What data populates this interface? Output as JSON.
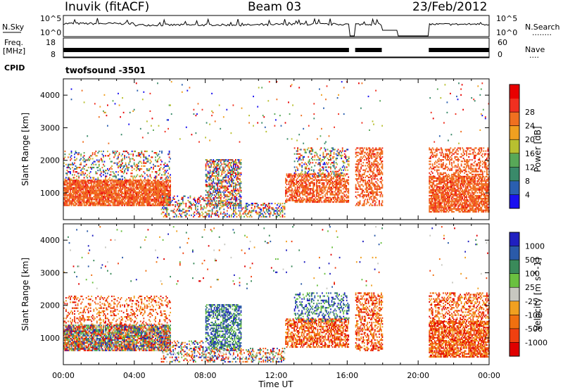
{
  "header": {
    "station": "Inuvik (fitACF)",
    "beam": "Beam 03",
    "date": "23/Feb/2012"
  },
  "side_labels": {
    "nsky": "N.Sky",
    "nsearch": "N.Search",
    "nsearch_dots": "........",
    "freq_line1": "Freq.",
    "freq_line2": "[MHz]",
    "nave": "Nave",
    "nave_dots": "....",
    "cpid": "CPID"
  },
  "strip_ticks": {
    "nsky_left": [
      "10^5",
      "10^0"
    ],
    "nsky_right": [
      "10^5",
      "10^0"
    ],
    "freq_left": [
      "18",
      "8"
    ],
    "nave_right": [
      "60",
      "0"
    ]
  },
  "cpid_text": "twofsound  -3501",
  "chart_data": [
    {
      "type": "heatmap",
      "title": "",
      "xlabel": "",
      "ylabel": "Slant Range [km]",
      "xlim": [
        0,
        24
      ],
      "ylim": [
        180,
        4500
      ],
      "x_ticks": [
        "00:00",
        "04:00",
        "08:00",
        "12:00",
        "16:00",
        "20:00",
        "00:00"
      ],
      "y_ticks": [
        1000,
        2000,
        3000,
        4000
      ],
      "colorbar": {
        "label": "Power [dB]",
        "ticks": [
          "4",
          "8",
          "12",
          "16",
          "20",
          "24",
          "28"
        ],
        "colors": [
          "#1a10f0",
          "#2a5fb0",
          "#3a8a6a",
          "#58a858",
          "#b8c030",
          "#f0a020",
          "#f07020",
          "#f03020",
          "#e80000"
        ]
      },
      "data_gaps_ut": [
        [
          16.1,
          16.45
        ],
        [
          17.95,
          20.6
        ]
      ],
      "grid": false
    },
    {
      "type": "heatmap",
      "title": "",
      "xlabel": "Time UT",
      "ylabel": "Slant Range [km]",
      "xlim": [
        0,
        24
      ],
      "ylim": [
        180,
        4500
      ],
      "x_ticks": [
        "00:00",
        "04:00",
        "08:00",
        "12:00",
        "16:00",
        "20:00",
        "00:00"
      ],
      "y_ticks": [
        1000,
        2000,
        3000,
        4000
      ],
      "colorbar": {
        "label": "Velocity [m s^-1]",
        "ticks": [
          "1000",
          "500",
          "100",
          "25",
          "-25",
          "-100",
          "-500",
          "-1000"
        ],
        "colors": [
          "#2020c0",
          "#2a5aa8",
          "#3a8a5a",
          "#6ac040",
          "#c8c8c0",
          "#f0a020",
          "#f07010",
          "#f04010",
          "#e00000"
        ]
      },
      "data_gaps_ut": [
        [
          16.1,
          16.45
        ],
        [
          17.95,
          20.6
        ]
      ],
      "grid": false
    }
  ]
}
